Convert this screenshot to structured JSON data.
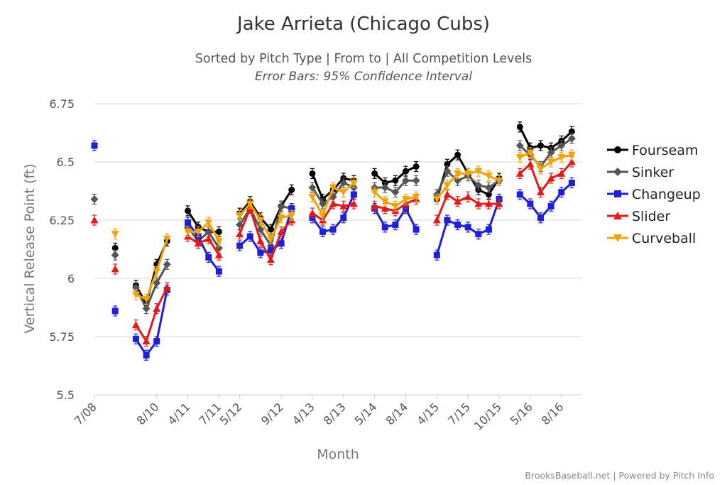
{
  "chart_data": {
    "type": "line",
    "title": "Jake Arrieta (Chicago Cubs)",
    "subtitle": "Sorted by Pitch Type | From to | All Competition Levels",
    "subtitle2": "Error Bars: 95% Confidence Interval",
    "xlabel": "Month",
    "ylabel": "Vertical Release Point (ft)",
    "ylim": [
      5.5,
      6.75
    ],
    "yticks": [
      "5.5",
      "5.75",
      "6",
      "6.25",
      "6.5",
      "6.75"
    ],
    "grid": true,
    "legend_position": "right",
    "credit": "BrooksBaseball.net | Powered by Pitch Info",
    "x_tick_labels": [
      "7/08",
      "8/10",
      "4/11",
      "7/11",
      "5/12",
      "9/12",
      "4/13",
      "8/13",
      "5/14",
      "8/14",
      "4/15",
      "7/15",
      "10/15",
      "5/16",
      "8/16"
    ],
    "x_tick_positions": [
      0,
      6,
      9,
      12,
      14,
      18,
      21,
      24,
      27,
      30,
      33,
      36,
      39,
      42,
      45
    ],
    "x_range": [
      0,
      47
    ],
    "segments": [
      [
        0,
        0
      ],
      [
        2,
        2
      ],
      [
        4,
        8
      ],
      [
        9,
        12
      ],
      [
        14,
        19
      ],
      [
        21,
        26
      ],
      [
        27,
        32
      ],
      [
        33,
        40
      ],
      [
        41,
        47
      ]
    ],
    "series": [
      {
        "name": "Fourseam",
        "color": "#000000",
        "marker": "circle",
        "points": [
          [
            2,
            6.13
          ],
          [
            4,
            5.97
          ],
          [
            5,
            5.89
          ],
          [
            6,
            6.06
          ],
          [
            7,
            6.16
          ],
          [
            9,
            6.29
          ],
          [
            10,
            6.22
          ],
          [
            11,
            6.2
          ],
          [
            12,
            6.2
          ],
          [
            14,
            6.28
          ],
          [
            15,
            6.33
          ],
          [
            16,
            6.26
          ],
          [
            17,
            6.21
          ],
          [
            18,
            6.31
          ],
          [
            19,
            6.38
          ],
          [
            21,
            6.45
          ],
          [
            22,
            6.34
          ],
          [
            23,
            6.38
          ],
          [
            24,
            6.43
          ],
          [
            25,
            6.42
          ],
          [
            27,
            6.45
          ],
          [
            28,
            6.41
          ],
          [
            29,
            6.42
          ],
          [
            30,
            6.46
          ],
          [
            31,
            6.48
          ],
          [
            33,
            6.34
          ],
          [
            34,
            6.49
          ],
          [
            35,
            6.53
          ],
          [
            36,
            6.45
          ],
          [
            37,
            6.38
          ],
          [
            38,
            6.36
          ],
          [
            39,
            6.43
          ],
          [
            41,
            6.65
          ],
          [
            42,
            6.56
          ],
          [
            43,
            6.57
          ],
          [
            44,
            6.56
          ],
          [
            45,
            6.59
          ],
          [
            46,
            6.63
          ]
        ]
      },
      {
        "name": "Sinker",
        "color": "#555555",
        "marker": "diamond",
        "points": [
          [
            0,
            6.34
          ],
          [
            2,
            6.1
          ],
          [
            4,
            5.96
          ],
          [
            5,
            5.87
          ],
          [
            6,
            5.98
          ],
          [
            7,
            6.06
          ],
          [
            9,
            6.22
          ],
          [
            10,
            6.16
          ],
          [
            11,
            6.2
          ],
          [
            12,
            6.13
          ],
          [
            14,
            6.23
          ],
          [
            15,
            6.3
          ],
          [
            16,
            6.21
          ],
          [
            17,
            6.14
          ],
          [
            18,
            6.31
          ],
          [
            19,
            6.3
          ],
          [
            21,
            6.39
          ],
          [
            22,
            6.32
          ],
          [
            23,
            6.35
          ],
          [
            24,
            6.41
          ],
          [
            25,
            6.39
          ],
          [
            27,
            6.39
          ],
          [
            28,
            6.39
          ],
          [
            29,
            6.37
          ],
          [
            30,
            6.42
          ],
          [
            31,
            6.42
          ],
          [
            33,
            6.36
          ],
          [
            34,
            6.46
          ],
          [
            35,
            6.42
          ],
          [
            36,
            6.44
          ],
          [
            37,
            6.4
          ],
          [
            38,
            6.39
          ],
          [
            39,
            6.42
          ],
          [
            41,
            6.57
          ],
          [
            42,
            6.53
          ],
          [
            43,
            6.48
          ],
          [
            44,
            6.54
          ],
          [
            45,
            6.57
          ],
          [
            46,
            6.6
          ]
        ]
      },
      {
        "name": "Changeup",
        "color": "#1f1fd6",
        "marker": "square",
        "points": [
          [
            0,
            6.57
          ],
          [
            2,
            5.86
          ],
          [
            4,
            5.74
          ],
          [
            5,
            5.67
          ],
          [
            6,
            5.73
          ],
          [
            7,
            5.95
          ],
          [
            9,
            6.24
          ],
          [
            10,
            6.18
          ],
          [
            11,
            6.09
          ],
          [
            12,
            6.03
          ],
          [
            14,
            6.14
          ],
          [
            15,
            6.18
          ],
          [
            16,
            6.11
          ],
          [
            17,
            6.12
          ],
          [
            18,
            6.15
          ],
          [
            19,
            6.3
          ],
          [
            21,
            6.26
          ],
          [
            22,
            6.2
          ],
          [
            23,
            6.21
          ],
          [
            24,
            6.26
          ],
          [
            25,
            6.36
          ],
          [
            27,
            6.3
          ],
          [
            28,
            6.22
          ],
          [
            29,
            6.23
          ],
          [
            30,
            6.3
          ],
          [
            31,
            6.21
          ],
          [
            33,
            6.1
          ],
          [
            34,
            6.25
          ],
          [
            35,
            6.23
          ],
          [
            36,
            6.22
          ],
          [
            37,
            6.19
          ],
          [
            38,
            6.21
          ],
          [
            39,
            6.34
          ],
          [
            41,
            6.36
          ],
          [
            42,
            6.32
          ],
          [
            43,
            6.26
          ],
          [
            44,
            6.31
          ],
          [
            45,
            6.37
          ],
          [
            46,
            6.41
          ]
        ]
      },
      {
        "name": "Slider",
        "color": "#e31a1a",
        "marker": "triangle",
        "points": [
          [
            0,
            6.25
          ],
          [
            2,
            6.04
          ],
          [
            4,
            5.8
          ],
          [
            5,
            5.73
          ],
          [
            6,
            5.87
          ],
          [
            7,
            5.96
          ],
          [
            9,
            6.18
          ],
          [
            10,
            6.15
          ],
          [
            11,
            6.17
          ],
          [
            12,
            6.1
          ],
          [
            14,
            6.19
          ],
          [
            15,
            6.3
          ],
          [
            16,
            6.16
          ],
          [
            17,
            6.08
          ],
          [
            18,
            6.2
          ],
          [
            19,
            6.25
          ],
          [
            21,
            6.28
          ],
          [
            22,
            6.25
          ],
          [
            23,
            6.32
          ],
          [
            24,
            6.31
          ],
          [
            25,
            6.32
          ],
          [
            27,
            6.31
          ],
          [
            28,
            6.3
          ],
          [
            29,
            6.29
          ],
          [
            30,
            6.32
          ],
          [
            31,
            6.34
          ],
          [
            33,
            6.25
          ],
          [
            34,
            6.36
          ],
          [
            35,
            6.33
          ],
          [
            36,
            6.35
          ],
          [
            37,
            6.32
          ],
          [
            38,
            6.32
          ],
          [
            39,
            6.32
          ],
          [
            41,
            6.45
          ],
          [
            42,
            6.49
          ],
          [
            43,
            6.37
          ],
          [
            44,
            6.43
          ],
          [
            45,
            6.45
          ],
          [
            46,
            6.5
          ]
        ]
      },
      {
        "name": "Curveball",
        "color": "#f0a30a",
        "marker": "triangle-down",
        "points": [
          [
            2,
            6.19
          ],
          [
            4,
            5.93
          ],
          [
            5,
            5.91
          ],
          [
            6,
            6.03
          ],
          [
            7,
            6.17
          ],
          [
            9,
            6.2
          ],
          [
            10,
            6.2
          ],
          [
            11,
            6.24
          ],
          [
            12,
            6.16
          ],
          [
            14,
            6.27
          ],
          [
            15,
            6.32
          ],
          [
            16,
            6.25
          ],
          [
            17,
            6.17
          ],
          [
            18,
            6.26
          ],
          [
            19,
            6.27
          ],
          [
            21,
            6.35
          ],
          [
            22,
            6.27
          ],
          [
            23,
            6.39
          ],
          [
            24,
            6.37
          ],
          [
            25,
            6.41
          ],
          [
            27,
            6.37
          ],
          [
            28,
            6.33
          ],
          [
            29,
            6.31
          ],
          [
            30,
            6.34
          ],
          [
            31,
            6.35
          ],
          [
            33,
            6.34
          ],
          [
            34,
            6.4
          ],
          [
            35,
            6.45
          ],
          [
            36,
            6.45
          ],
          [
            37,
            6.46
          ],
          [
            38,
            6.44
          ],
          [
            39,
            6.42
          ],
          [
            41,
            6.52
          ],
          [
            42,
            6.54
          ],
          [
            43,
            6.47
          ],
          [
            44,
            6.5
          ],
          [
            45,
            6.52
          ],
          [
            46,
            6.53
          ]
        ]
      }
    ]
  }
}
